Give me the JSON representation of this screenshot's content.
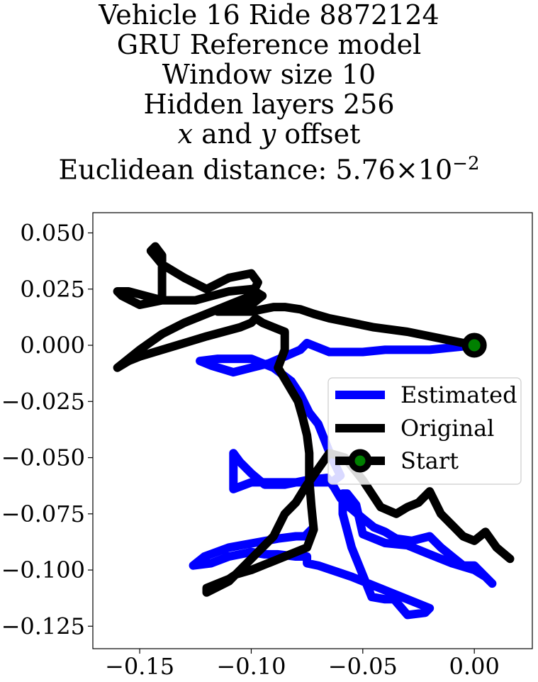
{
  "title_lines": [
    "Vehicle 16 Ride 8872124",
    "GRU Reference model",
    "Window size 10",
    "Hidden layers 256",
    "x and y offset",
    "Euclidean distance: 5.76×10⁻²"
  ],
  "title_parts": {
    "line5_x": "x",
    "line5_and": " and ",
    "line5_y": "y",
    "line5_rest": " offset",
    "line6_prefix": "Euclidean distance: 5.76",
    "line6_times": "×",
    "line6_base": "10",
    "line6_exp": "−2"
  },
  "colors": {
    "estimated": "#0000ff",
    "original": "#000000",
    "start_marker_fill": "#008000"
  },
  "chart_data": {
    "type": "line",
    "xlabel": "",
    "ylabel": "",
    "xlim": [
      -0.171,
      0.026
    ],
    "ylim": [
      -0.135,
      0.059
    ],
    "x_ticks": [
      -0.15,
      -0.1,
      -0.05,
      0.0
    ],
    "x_tick_labels": [
      "−0.15",
      "−0.10",
      "−0.05",
      "0.00"
    ],
    "y_ticks": [
      0.05,
      0.025,
      0.0,
      -0.025,
      -0.05,
      -0.075,
      -0.1,
      -0.125
    ],
    "y_tick_labels": [
      "0.050",
      "0.025",
      "0.000",
      "−0.025",
      "−0.050",
      "−0.075",
      "−0.100",
      "−0.125"
    ],
    "grid": false,
    "legend_position": "center-right",
    "series": [
      {
        "name": "Estimated",
        "color": "#0000ff",
        "x": [
          0.0,
          -0.02,
          -0.04,
          -0.05,
          -0.065,
          -0.075,
          -0.078,
          -0.085,
          -0.092,
          -0.1,
          -0.108,
          -0.118,
          -0.123,
          -0.115,
          -0.1,
          -0.09,
          -0.082,
          -0.078,
          -0.074,
          -0.07,
          -0.066,
          -0.064,
          -0.06,
          -0.064,
          -0.07,
          -0.075,
          -0.085,
          -0.1,
          -0.108,
          -0.108,
          -0.105,
          -0.1,
          -0.094,
          -0.085,
          -0.075,
          -0.066,
          -0.063,
          -0.06,
          -0.056,
          -0.05,
          -0.045,
          -0.04,
          -0.035,
          -0.028,
          -0.02,
          -0.015,
          -0.01,
          -0.005,
          0.0,
          0.008,
          0.005,
          0.0,
          -0.01,
          -0.02,
          -0.03,
          -0.04,
          -0.05,
          -0.053,
          -0.057,
          -0.059,
          -0.059,
          -0.055,
          -0.046,
          -0.04,
          -0.036,
          -0.03,
          -0.022,
          -0.02,
          -0.03,
          -0.055,
          -0.07,
          -0.075,
          -0.075,
          -0.08,
          -0.088,
          -0.094,
          -0.1,
          -0.11,
          -0.118,
          -0.126,
          -0.121,
          -0.11,
          -0.099,
          -0.088,
          -0.08,
          -0.076,
          -0.073
        ],
        "y": [
          0.0,
          -0.002,
          -0.002,
          -0.003,
          -0.003,
          0.001,
          -0.002,
          -0.005,
          -0.008,
          -0.01,
          -0.012,
          -0.009,
          -0.007,
          -0.006,
          -0.006,
          -0.01,
          -0.016,
          -0.022,
          -0.03,
          -0.035,
          -0.045,
          -0.05,
          -0.058,
          -0.061,
          -0.061,
          -0.061,
          -0.061,
          -0.061,
          -0.064,
          -0.048,
          -0.052,
          -0.057,
          -0.062,
          -0.062,
          -0.06,
          -0.059,
          -0.063,
          -0.068,
          -0.072,
          -0.077,
          -0.081,
          -0.083,
          -0.086,
          -0.087,
          -0.085,
          -0.09,
          -0.094,
          -0.098,
          -0.098,
          -0.106,
          -0.103,
          -0.1,
          -0.097,
          -0.093,
          -0.089,
          -0.088,
          -0.084,
          -0.071,
          -0.066,
          -0.066,
          -0.075,
          -0.09,
          -0.112,
          -0.113,
          -0.113,
          -0.12,
          -0.119,
          -0.117,
          -0.113,
          -0.103,
          -0.098,
          -0.097,
          -0.094,
          -0.094,
          -0.093,
          -0.093,
          -0.092,
          -0.094,
          -0.097,
          -0.098,
          -0.094,
          -0.09,
          -0.088,
          -0.086,
          -0.085,
          -0.085,
          -0.082
        ]
      },
      {
        "name": "Original",
        "color": "#000000",
        "x": [
          0.0,
          -0.015,
          -0.03,
          -0.045,
          -0.055,
          -0.065,
          -0.072,
          -0.078,
          -0.085,
          -0.09,
          -0.095,
          -0.1,
          -0.108,
          -0.115,
          -0.1,
          -0.095,
          -0.1,
          -0.11,
          -0.125,
          -0.14,
          -0.155,
          -0.16,
          -0.158,
          -0.15,
          -0.14,
          -0.14,
          -0.14,
          -0.143,
          -0.145,
          -0.14,
          -0.13,
          -0.12,
          -0.11,
          -0.1,
          -0.097,
          -0.1,
          -0.11,
          -0.12,
          -0.13,
          -0.14,
          -0.15,
          -0.16,
          -0.155,
          -0.15,
          -0.14,
          -0.12,
          -0.105,
          -0.1,
          -0.098,
          -0.095,
          -0.09,
          -0.085,
          -0.085,
          -0.088,
          -0.085,
          -0.082,
          -0.079,
          -0.077,
          -0.075,
          -0.074,
          -0.074,
          -0.073,
          -0.072,
          -0.075,
          -0.08,
          -0.085,
          -0.09,
          -0.095,
          -0.1,
          -0.107,
          -0.11,
          -0.115,
          -0.12,
          -0.12,
          -0.11,
          -0.1,
          -0.09,
          -0.085,
          -0.08,
          -0.075,
          -0.07,
          -0.065,
          -0.058,
          -0.05,
          -0.042,
          -0.035,
          -0.03,
          -0.025,
          -0.02,
          -0.015,
          -0.01,
          -0.005,
          0.0,
          0.005,
          0.01,
          0.016
        ],
        "y": [
          0.0,
          0.003,
          0.006,
          0.008,
          0.01,
          0.012,
          0.014,
          0.016,
          0.017,
          0.017,
          0.016,
          0.015,
          0.015,
          0.015,
          0.018,
          0.022,
          0.025,
          0.024,
          0.02,
          0.02,
          0.024,
          0.024,
          0.022,
          0.018,
          0.02,
          0.03,
          0.04,
          0.044,
          0.042,
          0.036,
          0.03,
          0.025,
          0.03,
          0.032,
          0.028,
          0.022,
          0.018,
          0.014,
          0.01,
          0.005,
          -0.002,
          -0.01,
          -0.007,
          -0.005,
          -0.002,
          0.004,
          0.008,
          0.01,
          0.012,
          0.01,
          0.008,
          0.006,
          -0.002,
          -0.01,
          -0.015,
          -0.02,
          -0.025,
          -0.032,
          -0.04,
          -0.048,
          -0.06,
          -0.072,
          -0.082,
          -0.09,
          -0.092,
          -0.094,
          -0.096,
          -0.098,
          -0.1,
          -0.102,
          -0.104,
          -0.106,
          -0.108,
          -0.11,
          -0.105,
          -0.095,
          -0.085,
          -0.075,
          -0.07,
          -0.062,
          -0.055,
          -0.048,
          -0.05,
          -0.06,
          -0.072,
          -0.075,
          -0.072,
          -0.07,
          -0.065,
          -0.075,
          -0.08,
          -0.085,
          -0.087,
          -0.083,
          -0.09,
          -0.095
        ]
      }
    ],
    "start_point": {
      "name": "Start",
      "x": 0.0,
      "y": 0.0
    },
    "legend": [
      "Estimated",
      "Original",
      "Start"
    ]
  }
}
